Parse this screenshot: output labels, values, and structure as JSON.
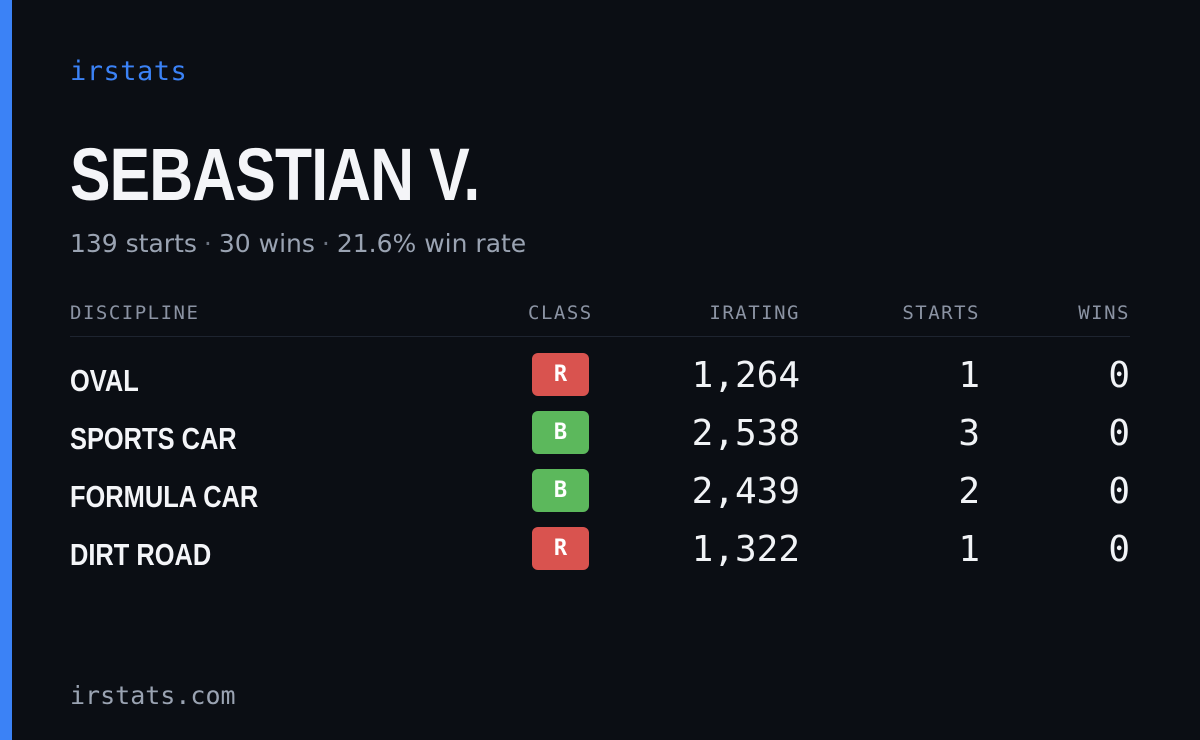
{
  "brand": "irstats",
  "driver": {
    "name": "SEBASTIAN V.",
    "summary": {
      "starts": "139 starts",
      "wins": "30 wins",
      "win_rate": "21.6% win rate",
      "separator": "·"
    }
  },
  "table": {
    "headers": {
      "discipline": "DISCIPLINE",
      "class": "CLASS",
      "irating": "IRATING",
      "starts": "STARTS",
      "wins": "WINS"
    },
    "rows": [
      {
        "discipline": "OVAL",
        "class": "R",
        "class_color": "#d9534f",
        "irating": "1,264",
        "starts": "1",
        "wins": "0"
      },
      {
        "discipline": "SPORTS CAR",
        "class": "B",
        "class_color": "#5cb85c",
        "irating": "2,538",
        "starts": "3",
        "wins": "0"
      },
      {
        "discipline": "FORMULA CAR",
        "class": "B",
        "class_color": "#5cb85c",
        "irating": "2,439",
        "starts": "2",
        "wins": "0"
      },
      {
        "discipline": "DIRT ROAD",
        "class": "R",
        "class_color": "#d9534f",
        "irating": "1,322",
        "starts": "1",
        "wins": "0"
      }
    ]
  },
  "footer": "irstats.com",
  "colors": {
    "accent": "#3b82f6",
    "background": "#0b0e14",
    "class_R": "#d9534f",
    "class_B": "#5cb85c"
  }
}
